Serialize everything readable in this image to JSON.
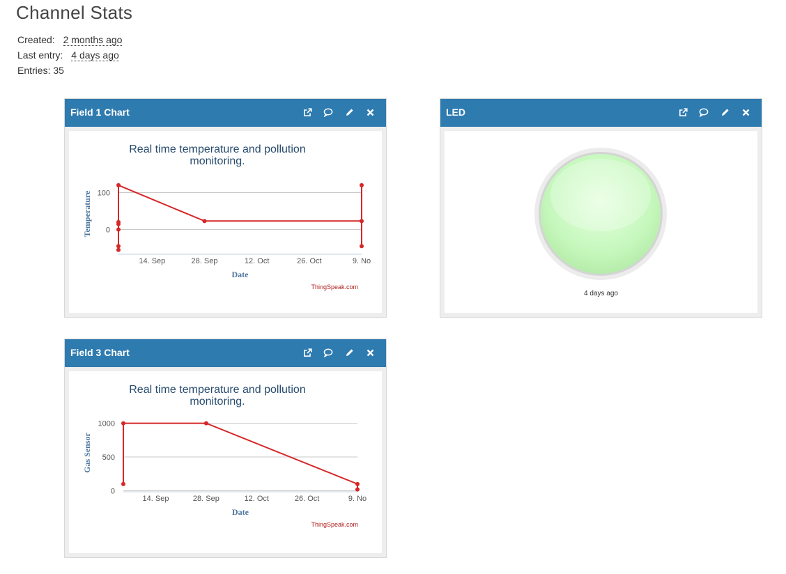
{
  "page": {
    "title": "Channel Stats",
    "created_label": "Created:",
    "created_value": "2 months ago",
    "last_entry_label": "Last entry:",
    "last_entry_value": "4 days ago",
    "entries_label": "Entries:",
    "entries_value": "35"
  },
  "colors": {
    "header": "#2e7bb0",
    "series": "#d62728",
    "title": "#274b6d",
    "axis_title": "#4d759e"
  },
  "widgets": {
    "field1": {
      "title": "Field 1 Chart",
      "icons": [
        "external-link-icon",
        "comment-icon",
        "pencil-icon",
        "close-icon"
      ]
    },
    "led": {
      "title": "LED",
      "caption": "4 days ago",
      "icons": [
        "external-link-icon",
        "comment-icon",
        "pencil-icon",
        "close-icon"
      ]
    },
    "field3": {
      "title": "Field 3 Chart",
      "icons": [
        "external-link-icon",
        "comment-icon",
        "pencil-icon",
        "close-icon"
      ]
    }
  },
  "chart_data": [
    {
      "type": "line",
      "title": "Real time temperature and pollution monitoring.",
      "xlabel": "Date",
      "ylabel": "Temperature",
      "credit": "ThingSpeak.com",
      "x_ticks": [
        "14. Sep",
        "28. Sep",
        "12. Oct",
        "26. Oct",
        "9. No"
      ],
      "y_ticks": [
        "100",
        "0"
      ],
      "series": [
        {
          "points": [
            [
              "Sep 5",
              -55
            ],
            [
              "Sep 5",
              -45
            ],
            [
              "Sep 5",
              0
            ],
            [
              "Sep 5",
              15
            ],
            [
              "Sep 5",
              20
            ],
            [
              "Sep 5",
              120
            ],
            [
              "Sep 28",
              23
            ],
            [
              "Nov 9",
              23
            ],
            [
              "Nov 9",
              120
            ],
            [
              "Nov 9",
              -45
            ]
          ]
        }
      ]
    },
    {
      "type": "line",
      "title": "Real time temperature and pollution monitoring.",
      "xlabel": "Date",
      "ylabel": "Gas Sensor",
      "credit": "ThingSpeak.com",
      "x_ticks": [
        "14. Sep",
        "28. Sep",
        "12. Oct",
        "26. Oct",
        "9. No"
      ],
      "y_ticks": [
        "1000",
        "500",
        "0"
      ],
      "series": [
        {
          "points": [
            [
              "Sep 5",
              100
            ],
            [
              "Sep 5",
              1000
            ],
            [
              "Sep 28",
              1000
            ],
            [
              "Nov 9",
              100
            ],
            [
              "Nov 9",
              20
            ]
          ]
        }
      ]
    }
  ]
}
